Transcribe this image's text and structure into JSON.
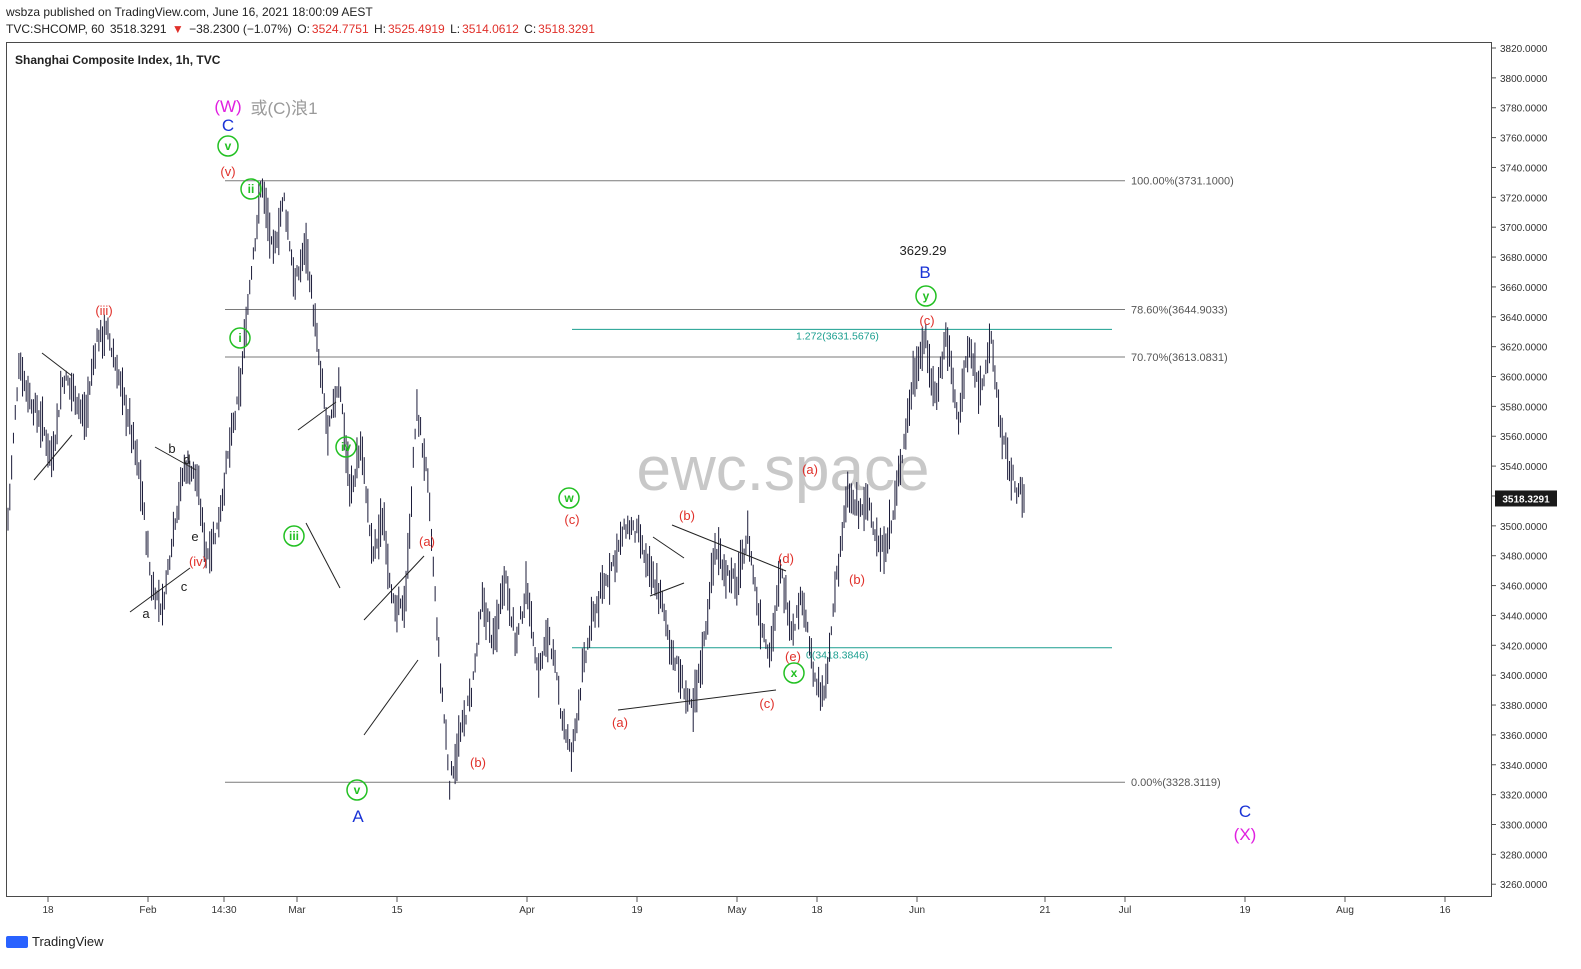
{
  "header": {
    "published_line": "wsbza published on TradingView.com, June 16, 2021 18:00:09 AEST",
    "symbol": "TVC:SHCOMP, 60",
    "last": "3518.3291",
    "arrow": "▼",
    "change": "−38.2300 (−1.07%)",
    "o_label": "O:",
    "o_value": "3524.7751",
    "h_label": "H:",
    "h_value": "3525.4919",
    "l_label": "L:",
    "l_value": "3514.0612",
    "c_label": "C:",
    "c_value": "3518.3291"
  },
  "chart_title": "Shanghai Composite Index, 1h, TVC",
  "watermark": "ewc.space",
  "footer": {
    "brand": "TradingView"
  },
  "colors": {
    "up_down_red": "#e0302a",
    "fib_gray": "#7a7a7a",
    "teal": "#1a9e8f",
    "green_wave": "#22c022",
    "blue_wave": "#1a33d6",
    "magenta_wave": "#e020e0",
    "candles": "#1c1c3a"
  },
  "chart_data": {
    "type": "candlestick",
    "ylim": [
      3245,
      3825
    ],
    "y_ticks": [
      "3820.0000",
      "3800.0000",
      "3780.0000",
      "3760.0000",
      "3740.0000",
      "3720.0000",
      "3700.0000",
      "3680.0000",
      "3660.0000",
      "3640.0000",
      "3620.0000",
      "3600.0000",
      "3580.0000",
      "3560.0000",
      "3540.0000",
      "3520.0000",
      "3500.0000",
      "3480.0000",
      "3460.0000",
      "3440.0000",
      "3420.0000",
      "3400.0000",
      "3380.0000",
      "3360.0000",
      "3340.0000",
      "3320.0000",
      "3300.0000",
      "3280.0000",
      "3260.0000"
    ],
    "x_ticks": [
      "18",
      "Feb",
      "14:30",
      "Mar",
      "15",
      "Apr",
      "19",
      "May",
      "18",
      "Jun",
      "21",
      "Jul",
      "19",
      "Aug",
      "16"
    ],
    "last_price_label": "3518.3291",
    "price_path": [
      3505,
      3610,
      3585,
      3570,
      3545,
      3600,
      3590,
      3570,
      3625,
      3630,
      3600,
      3570,
      3530,
      3460,
      3445,
      3500,
      3540,
      3535,
      3480,
      3500,
      3550,
      3590,
      3670,
      3731,
      3680,
      3720,
      3660,
      3690,
      3620,
      3560,
      3600,
      3520,
      3555,
      3480,
      3505,
      3440,
      3450,
      3580,
      3530,
      3415,
      3328,
      3360,
      3390,
      3450,
      3420,
      3470,
      3420,
      3460,
      3400,
      3430,
      3380,
      3345,
      3400,
      3440,
      3460,
      3480,
      3500,
      3495,
      3470,
      3455,
      3420,
      3395,
      3375,
      3420,
      3485,
      3470,
      3460,
      3495,
      3440,
      3415,
      3470,
      3430,
      3455,
      3395,
      3385,
      3465,
      3520,
      3510,
      3515,
      3480,
      3500,
      3550,
      3600,
      3625,
      3585,
      3630,
      3570,
      3620,
      3590,
      3625,
      3560,
      3530,
      3518
    ],
    "fib_levels": [
      {
        "label": "100.00%(3731.1000)",
        "value": 3731.1
      },
      {
        "label": "78.60%(3644.9033)",
        "value": 3644.9033
      },
      {
        "label": "70.70%(3613.0831)",
        "value": 3613.0831
      },
      {
        "label": "0.00%(3328.3119)",
        "value": 3328.3119
      }
    ],
    "teal_levels": [
      {
        "label": "1.272(3631.5676)",
        "value": 3631.5676
      },
      {
        "label": "0(3418.3846)",
        "value": 3418.3846
      }
    ],
    "wave_labels": [
      {
        "text": "(W)",
        "color": "magenta"
      },
      {
        "text": "或(C)浪1",
        "color": "gray"
      },
      {
        "text": "C",
        "color": "blue"
      },
      {
        "text": "v",
        "color": "green",
        "circled": true
      },
      {
        "text": "(v)",
        "color": "red"
      },
      {
        "text": "ii",
        "color": "green",
        "circled": true
      },
      {
        "text": "i",
        "color": "green",
        "circled": true
      },
      {
        "text": "(iii)",
        "color": "red"
      },
      {
        "text": "(iv)",
        "color": "red"
      },
      {
        "text": "a",
        "color": "black"
      },
      {
        "text": "b",
        "color": "black"
      },
      {
        "text": "c",
        "color": "black"
      },
      {
        "text": "d",
        "color": "black"
      },
      {
        "text": "e",
        "color": "black"
      },
      {
        "text": "iii",
        "color": "green",
        "circled": true
      },
      {
        "text": "iv",
        "color": "green",
        "circled": true
      },
      {
        "text": "v",
        "color": "green",
        "circled": true
      },
      {
        "text": "A",
        "color": "blue"
      },
      {
        "text": "(a)",
        "color": "red"
      },
      {
        "text": "(b)",
        "color": "red"
      },
      {
        "text": "w",
        "color": "green",
        "circled": true
      },
      {
        "text": "(c)",
        "color": "red"
      },
      {
        "text": "(a)",
        "color": "red"
      },
      {
        "text": "(b)",
        "color": "red"
      },
      {
        "text": "(c)",
        "color": "red"
      },
      {
        "text": "(d)",
        "color": "red"
      },
      {
        "text": "(e)",
        "color": "red"
      },
      {
        "text": "x",
        "color": "green",
        "circled": true
      },
      {
        "text": "(a)",
        "color": "red"
      },
      {
        "text": "(b)",
        "color": "red"
      },
      {
        "text": "(c)",
        "color": "red"
      },
      {
        "text": "y",
        "color": "green",
        "circled": true
      },
      {
        "text": "B",
        "color": "blue"
      },
      {
        "text": "3629.29",
        "color": "black"
      },
      {
        "text": "C",
        "color": "blue"
      },
      {
        "text": "(X)",
        "color": "magenta"
      }
    ]
  }
}
